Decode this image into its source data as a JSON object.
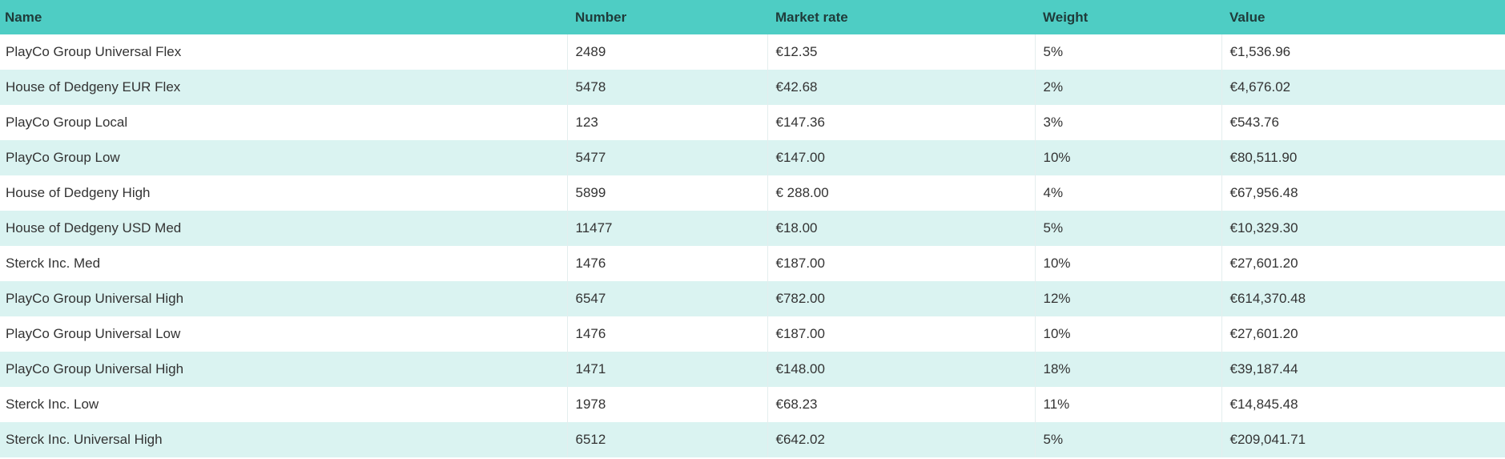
{
  "table": {
    "columns": [
      "Name",
      "Number",
      "Market rate",
      "Weight",
      "Value"
    ],
    "rows": [
      [
        "PlayCo Group Universal Flex",
        "2489",
        "€12.35",
        "5%",
        "€1,536.96"
      ],
      [
        "House of Dedgeny EUR Flex",
        "5478",
        "€42.68",
        "2%",
        "€4,676.02"
      ],
      [
        "PlayCo Group Local",
        "123",
        "€147.36",
        "3%",
        "€543.76"
      ],
      [
        "PlayCo Group Low",
        "5477",
        "€147.00",
        "10%",
        "€80,511.90"
      ],
      [
        "House of Dedgeny High",
        "5899",
        "€ 288.00",
        "4%",
        "€67,956.48"
      ],
      [
        "House of Dedgeny USD Med",
        "11477",
        "€18.00",
        "5%",
        "€10,329.30"
      ],
      [
        "Sterck Inc. Med",
        "1476",
        "€187.00",
        "10%",
        "€27,601.20"
      ],
      [
        "PlayCo Group Universal High",
        "6547",
        "€782.00",
        "12%",
        "€614,370.48"
      ],
      [
        "PlayCo Group Universal Low",
        "1476",
        "€187.00",
        "10%",
        "€27,601.20"
      ],
      [
        "PlayCo Group Universal High",
        "1471",
        "€148.00",
        "18%",
        "€39,187.44"
      ],
      [
        "Sterck Inc. Low",
        "1978",
        "€68.23",
        "11%",
        "€14,845.48"
      ],
      [
        "Sterck Inc. Universal High",
        "6512",
        "€642.02",
        "5%",
        "€209,041.71"
      ]
    ]
  },
  "colors": {
    "header_bg": "#4ecdc4",
    "row_alt_bg": "#daf3f1",
    "row_bg": "#ffffff"
  }
}
